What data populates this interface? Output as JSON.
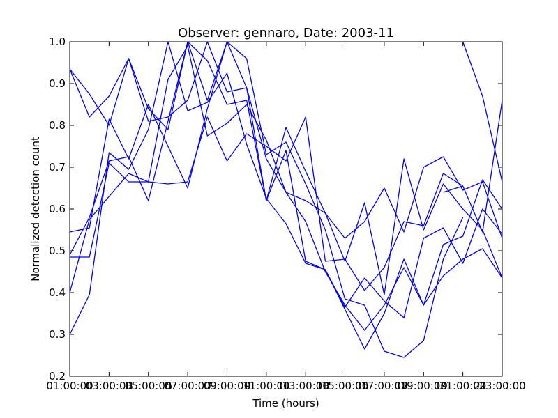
{
  "chart_data": {
    "type": "line",
    "title": "Observer: gennaro, Date: 2003-11",
    "xlabel": "Time (hours)",
    "ylabel": "Normalized detection count",
    "xlim": [
      1,
      23
    ],
    "ylim": [
      0.2,
      1.0
    ],
    "x_ticks": [
      1,
      3,
      5,
      7,
      9,
      11,
      13,
      15,
      17,
      19,
      21,
      23
    ],
    "x_tick_labels": [
      "01:00:00",
      "03:00:00",
      "05:00:00",
      "07:00:00",
      "09:00:00",
      "11:00:00",
      "13:00:00",
      "15:00:00",
      "17:00:00",
      "19:00:00",
      "21:00:00",
      "23:00:00"
    ],
    "x_tick_overlays": [
      "",
      "3",
      "5",
      "7",
      "9",
      "11",
      "13",
      "15",
      "17",
      "19",
      "21",
      ""
    ],
    "y_ticks": [
      0.2,
      0.3,
      0.4,
      0.5,
      0.6,
      0.7,
      0.8,
      0.9,
      1.0
    ],
    "y_tick_labels": [
      "0.2",
      "0.3",
      "0.4",
      "0.5",
      "0.6",
      "0.7",
      "0.8",
      "0.9",
      "1.0"
    ],
    "grid": false,
    "line_color": "#0000ff",
    "series": [
      {
        "points": [
          [
            1,
            0.935
          ],
          [
            2,
            0.82
          ],
          [
            3,
            0.87
          ],
          [
            4,
            0.96
          ],
          [
            5,
            0.84
          ],
          [
            6,
            0.79
          ],
          [
            7,
            1.0
          ],
          [
            8,
            0.86
          ],
          [
            9,
            1.0
          ],
          [
            10,
            0.89
          ],
          [
            11,
            0.72
          ],
          [
            12,
            0.64
          ],
          [
            13,
            0.57
          ],
          [
            14,
            0.45
          ],
          [
            15,
            0.37
          ],
          [
            16,
            0.31
          ],
          [
            17,
            0.37
          ],
          [
            18,
            0.46
          ],
          [
            19,
            0.37
          ],
          [
            20,
            0.44
          ],
          [
            21,
            0.48
          ],
          [
            22,
            0.505
          ],
          [
            23,
            0.435
          ]
        ]
      },
      {
        "points": [
          [
            1,
            0.545
          ],
          [
            2,
            0.555
          ],
          [
            3,
            0.815
          ],
          [
            4,
            0.72
          ],
          [
            5,
            0.85
          ],
          [
            6,
            0.75
          ],
          [
            7,
            0.65
          ],
          [
            8,
            0.84
          ],
          [
            9,
            1.0
          ],
          [
            10,
            0.96
          ],
          [
            11,
            0.73
          ],
          [
            12,
            0.76
          ],
          [
            13,
            0.66
          ],
          [
            14,
            0.55
          ],
          [
            15,
            0.385
          ],
          [
            16,
            0.37
          ],
          [
            17,
            0.26
          ],
          [
            18,
            0.245
          ],
          [
            19,
            0.285
          ],
          [
            20,
            0.48
          ],
          [
            21,
            0.58
          ]
        ]
      },
      {
        "points": [
          [
            1,
            0.935
          ],
          [
            2,
            0.875
          ],
          [
            3,
            0.8
          ],
          [
            4,
            0.96
          ],
          [
            5,
            0.81
          ],
          [
            6,
            0.82
          ],
          [
            7,
            0.86
          ],
          [
            8,
            1.0
          ],
          [
            9,
            0.88
          ],
          [
            10,
            0.89
          ],
          [
            11,
            0.62
          ],
          [
            12,
            0.795
          ],
          [
            13,
            0.69
          ],
          [
            14,
            0.59
          ],
          [
            15,
            0.475
          ],
          [
            16,
            0.615
          ],
          [
            17,
            0.395
          ],
          [
            18,
            0.72
          ],
          [
            19,
            0.55
          ],
          [
            20,
            0.66
          ],
          [
            21,
            0.6
          ],
          [
            22,
            0.55
          ],
          [
            23,
            0.435
          ]
        ]
      },
      {
        "points": [
          [
            1,
            0.49
          ],
          [
            2,
            0.58
          ],
          [
            3,
            0.715
          ],
          [
            4,
            0.725
          ],
          [
            5,
            0.62
          ],
          [
            6,
            0.81
          ],
          [
            7,
            1.0
          ],
          [
            8,
            0.955
          ],
          [
            9,
            0.85
          ],
          [
            10,
            0.86
          ],
          [
            11,
            0.62
          ],
          [
            12,
            0.74
          ],
          [
            13,
            0.475
          ],
          [
            14,
            0.455
          ],
          [
            15,
            0.365
          ],
          [
            16,
            0.435
          ],
          [
            17,
            0.38
          ],
          [
            18,
            0.34
          ],
          [
            19,
            0.53
          ],
          [
            20,
            0.555
          ],
          [
            21,
            0.47
          ],
          [
            22,
            0.6
          ],
          [
            23,
            0.54
          ]
        ]
      },
      {
        "points": [
          [
            1,
            0.3
          ],
          [
            2,
            0.395
          ],
          [
            3,
            0.735
          ],
          [
            4,
            0.695
          ],
          [
            5,
            0.79
          ],
          [
            6,
            1.0
          ],
          [
            7,
            0.835
          ],
          [
            8,
            0.855
          ],
          [
            9,
            0.925
          ],
          [
            10,
            0.755
          ],
          [
            11,
            0.625
          ],
          [
            12,
            0.565
          ],
          [
            13,
            0.47
          ],
          [
            14,
            0.455
          ],
          [
            15,
            0.36
          ],
          [
            16,
            0.265
          ],
          [
            17,
            0.35
          ],
          [
            18,
            0.48
          ],
          [
            19,
            0.37
          ],
          [
            20,
            0.515
          ],
          [
            21,
            0.535
          ],
          [
            22,
            0.67
          ],
          [
            23,
            0.6
          ]
        ]
      },
      {
        "points": [
          [
            1,
            0.4
          ],
          [
            2,
            0.575
          ],
          [
            3,
            0.63
          ],
          [
            4,
            0.685
          ],
          [
            5,
            0.665
          ],
          [
            6,
            0.66
          ],
          [
            7,
            0.665
          ],
          [
            8,
            0.82
          ],
          [
            9,
            0.715
          ],
          [
            10,
            0.78
          ],
          [
            11,
            0.75
          ],
          [
            12,
            0.715
          ],
          [
            13,
            0.82
          ],
          [
            14,
            0.475
          ],
          [
            15,
            0.48
          ],
          [
            16,
            0.405
          ],
          [
            17,
            0.46
          ],
          [
            18,
            0.57
          ],
          [
            19,
            0.56
          ],
          [
            20,
            0.685
          ],
          [
            21,
            0.655
          ]
        ]
      },
      {
        "points": [
          [
            1,
            0.485
          ],
          [
            2,
            0.485
          ],
          [
            3,
            0.71
          ],
          [
            4,
            0.665
          ],
          [
            5,
            0.665
          ],
          [
            6,
            0.91
          ],
          [
            7,
            0.99
          ],
          [
            8,
            0.775
          ],
          [
            9,
            0.805
          ],
          [
            10,
            0.85
          ],
          [
            11,
            0.765
          ],
          [
            12,
            0.64
          ],
          [
            13,
            0.62
          ],
          [
            14,
            0.59
          ],
          [
            15,
            0.53
          ],
          [
            16,
            0.57
          ],
          [
            17,
            0.65
          ],
          [
            18,
            0.545
          ],
          [
            19,
            0.7
          ],
          [
            20,
            0.725
          ],
          [
            21,
            0.645
          ],
          [
            22,
            0.665
          ],
          [
            23,
            0.53
          ]
        ]
      },
      {
        "points": [
          [
            21,
            1.0
          ],
          [
            22,
            0.87
          ],
          [
            23,
            0.665
          ]
        ]
      },
      {
        "points": [
          [
            20,
            0.64
          ],
          [
            21,
            0.655
          ],
          [
            22,
            0.545
          ],
          [
            23,
            0.86
          ]
        ]
      }
    ]
  }
}
